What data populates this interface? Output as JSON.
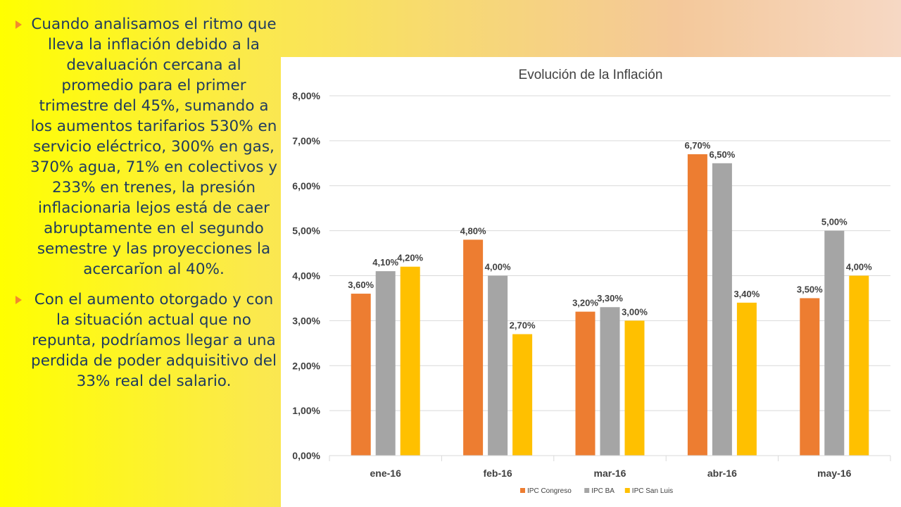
{
  "slide": {
    "bullets": [
      {
        "text": "Cuando analisamos el ritmo que lleva la inflación debido a la devaluación cercana al promedio para el primer trimestre del 45%, sumando a los aumentos tarifarios  530% en servicio eléctrico, 300% en gas, 370% agua, 71% en colectivos y 233% en trenes, la presión inflacionaria lejos está de caer abruptamente en el segundo semestre y las proyecciones la acercarĭon al 40%."
      },
      {
        "text": "Con el aumento otorgado y con la situación actual que no repunta, podríamos llegar a una perdida de poder adquisitivo del 33% real del salario."
      }
    ],
    "bullet_icon": "triangle-bullet-icon",
    "colors": {
      "text": "#1e3a5f",
      "bullet": "#f28a2e"
    }
  },
  "chart_data": {
    "type": "bar",
    "title": "Evolución de la Inflación",
    "categories": [
      "ene-16",
      "feb-16",
      "mar-16",
      "abr-16",
      "may-16"
    ],
    "series": [
      {
        "name": "IPC Congreso",
        "color": "#ed7d31",
        "values": [
          3.6,
          4.8,
          3.2,
          6.7,
          3.5
        ],
        "labels": [
          "3,60%",
          "4,80%",
          "3,20%",
          "6,70%",
          "3,50%"
        ]
      },
      {
        "name": "IPC BA",
        "color": "#a5a5a5",
        "values": [
          4.1,
          4.0,
          3.3,
          6.5,
          5.0
        ],
        "labels": [
          "4,10%",
          "4,00%",
          "3,30%",
          "6,50%",
          "5,00%"
        ]
      },
      {
        "name": "IPC San Luis",
        "color": "#ffc000",
        "values": [
          4.2,
          2.7,
          3.0,
          3.4,
          4.0
        ],
        "labels": [
          "4,20%",
          "2,70%",
          "3,00%",
          "3,40%",
          "4,00%"
        ]
      }
    ],
    "y_ticks": [
      "0,00%",
      "1,00%",
      "2,00%",
      "3,00%",
      "4,00%",
      "5,00%",
      "6,00%",
      "7,00%",
      "8,00%"
    ],
    "ylim": [
      0,
      8
    ],
    "grid": true,
    "legend_position": "bottom"
  }
}
